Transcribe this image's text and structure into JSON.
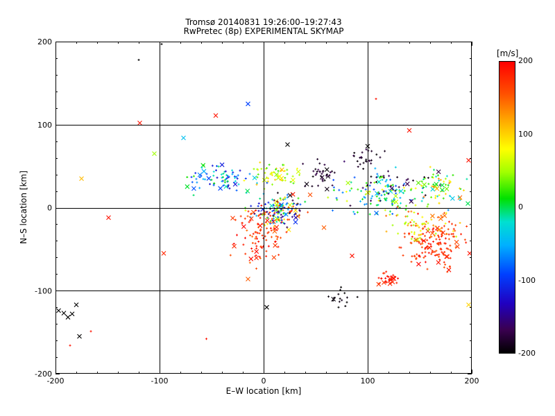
{
  "chart_data": {
    "type": "scatter",
    "title": "Tromsø 20140831 19:26:00–19:27:43",
    "subtitle": "RwPretec (8p) EXPERIMENTAL SKYMAP",
    "xlabel": "E–W location [km]",
    "ylabel": "N–S location [km]",
    "xlim": [
      -200,
      200
    ],
    "ylim": [
      -200,
      200
    ],
    "x_ticks": [
      "-200",
      "-100",
      "0",
      "100",
      "200"
    ],
    "y_ticks": [
      "-200",
      "-100",
      "0",
      "100",
      "200"
    ],
    "grid": true,
    "colorbar": {
      "label": "[m/s]",
      "range": [
        -200,
        200
      ],
      "ticks": [
        "200",
        "100",
        "0",
        "-100",
        "-200"
      ],
      "colormap": "black-purple-blue-cyan-green-yellow-orange-red"
    },
    "markers": [
      "x",
      "+"
    ],
    "sample_points": [
      {
        "x": -197,
        "y": -124,
        "v": -200,
        "m": "x"
      },
      {
        "x": -192,
        "y": -127,
        "v": -200,
        "m": "x"
      },
      {
        "x": -188,
        "y": -132,
        "v": -200,
        "m": "x"
      },
      {
        "x": -184,
        "y": -128,
        "v": -200,
        "m": "x"
      },
      {
        "x": -180,
        "y": -117,
        "v": -200,
        "m": "x"
      },
      {
        "x": -177,
        "y": -155,
        "v": -200,
        "m": "x"
      },
      {
        "x": -119,
        "y": 102,
        "v": 190,
        "m": "x"
      },
      {
        "x": -46,
        "y": 111,
        "v": 190,
        "m": "x"
      },
      {
        "x": -15,
        "y": 125,
        "v": -90,
        "m": "x"
      },
      {
        "x": -77,
        "y": 84,
        "v": -40,
        "m": "x"
      },
      {
        "x": -105,
        "y": 65,
        "v": 50,
        "m": "x"
      },
      {
        "x": -175,
        "y": 35,
        "v": 110,
        "m": "x"
      },
      {
        "x": -149,
        "y": -12,
        "v": 190,
        "m": "x"
      },
      {
        "x": -96,
        "y": -55,
        "v": 180,
        "m": "x"
      },
      {
        "x": -15,
        "y": -86,
        "v": 150,
        "m": "x"
      },
      {
        "x": 3,
        "y": -120,
        "v": -200,
        "m": "x"
      },
      {
        "x": 140,
        "y": 93,
        "v": 190,
        "m": "x"
      },
      {
        "x": 100,
        "y": 74,
        "v": -200,
        "m": "x"
      },
      {
        "x": 23,
        "y": 76,
        "v": -200,
        "m": "x"
      },
      {
        "x": 197,
        "y": 57,
        "v": 190,
        "m": "x"
      },
      {
        "x": 168,
        "y": -66,
        "v": 190,
        "m": "x"
      },
      {
        "x": 198,
        "y": -55,
        "v": 190,
        "m": "x"
      },
      {
        "x": 178,
        "y": -75,
        "v": 190,
        "m": "x"
      },
      {
        "x": 197,
        "y": -117,
        "v": 100,
        "m": "x"
      },
      {
        "x": 85,
        "y": -58,
        "v": 190,
        "m": "x"
      },
      {
        "x": 58,
        "y": -24,
        "v": 150,
        "m": "x"
      },
      {
        "x": -186,
        "y": -166,
        "v": 190,
        "m": "+"
      },
      {
        "x": -166,
        "y": -149,
        "v": 190,
        "m": "+"
      },
      {
        "x": -120,
        "y": 178,
        "v": -200,
        "m": "+"
      },
      {
        "x": -98,
        "y": 197,
        "v": -200,
        "m": "+"
      },
      {
        "x": -55,
        "y": -158,
        "v": 190,
        "m": "+"
      },
      {
        "x": 108,
        "y": 131,
        "v": 190,
        "m": "+"
      },
      {
        "x": 72,
        "y": -120,
        "v": -200,
        "m": "+"
      },
      {
        "x": 80,
        "y": -114,
        "v": -200,
        "m": "+"
      }
    ],
    "clusters": [
      {
        "cx": 15,
        "cy": -5,
        "sx": 18,
        "sy": 14,
        "n": 160,
        "vmin": -200,
        "vmax": 200
      },
      {
        "cx": -5,
        "cy": -35,
        "sx": 18,
        "sy": 22,
        "n": 95,
        "vmin": 140,
        "vmax": 200
      },
      {
        "cx": -40,
        "cy": 35,
        "sx": 22,
        "sy": 12,
        "n": 80,
        "vmin": -130,
        "vmax": 20
      },
      {
        "cx": 10,
        "cy": 40,
        "sx": 18,
        "sy": 10,
        "n": 55,
        "vmin": 20,
        "vmax": 110
      },
      {
        "cx": 55,
        "cy": 40,
        "sx": 10,
        "sy": 12,
        "n": 35,
        "vmin": -200,
        "vmax": -170
      },
      {
        "cx": 100,
        "cy": 60,
        "sx": 12,
        "sy": 10,
        "n": 25,
        "vmin": -200,
        "vmax": -170
      },
      {
        "cx": 115,
        "cy": 15,
        "sx": 28,
        "sy": 18,
        "n": 130,
        "vmin": -90,
        "vmax": 80
      },
      {
        "cx": 170,
        "cy": 25,
        "sx": 18,
        "sy": 15,
        "n": 60,
        "vmin": -40,
        "vmax": 150
      },
      {
        "cx": 165,
        "cy": -45,
        "sx": 20,
        "sy": 20,
        "n": 140,
        "vmin": 150,
        "vmax": 200
      },
      {
        "cx": 120,
        "cy": -85,
        "sx": 8,
        "sy": 6,
        "n": 35,
        "vmin": 170,
        "vmax": 200
      },
      {
        "cx": 150,
        "cy": -20,
        "sx": 25,
        "sy": 15,
        "n": 70,
        "vmin": 50,
        "vmax": 170
      },
      {
        "cx": 75,
        "cy": -110,
        "sx": 8,
        "sy": 8,
        "n": 15,
        "vmin": -200,
        "vmax": -190
      },
      {
        "cx": 120,
        "cy": 30,
        "sx": 30,
        "sy": 20,
        "n": 35,
        "vmin": -200,
        "vmax": -160
      }
    ]
  }
}
